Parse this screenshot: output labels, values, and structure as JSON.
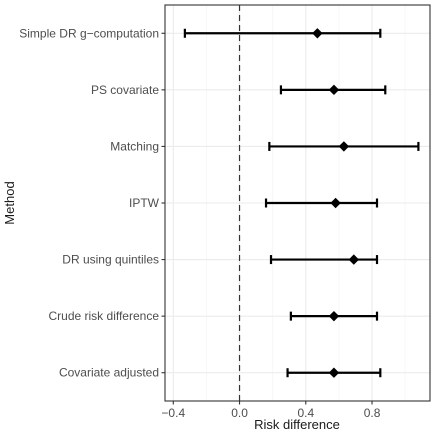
{
  "chart_data": {
    "type": "forest",
    "title": "",
    "xlabel": "Risk difference",
    "ylabel": "Method",
    "xlim": [
      -0.45,
      1.15
    ],
    "x_ticks": [
      -0.4,
      0.0,
      0.4,
      0.8
    ],
    "x_tick_labels": [
      "−0.4",
      "0.0",
      "0.4",
      "0.8"
    ],
    "reference_line": 0.0,
    "grid": true,
    "theme": "bw",
    "categories": [
      "Simple DR g−computation",
      "PS covariate",
      "Matching",
      "IPTW",
      "DR using quintiles",
      "Crude risk difference",
      "Covariate adjusted"
    ],
    "estimates": [
      0.47,
      0.57,
      0.63,
      0.58,
      0.69,
      0.57,
      0.57
    ],
    "lower": [
      -0.33,
      0.25,
      0.18,
      0.16,
      0.19,
      0.31,
      0.29
    ],
    "upper": [
      0.85,
      0.88,
      1.08,
      0.83,
      0.83,
      0.83,
      0.85
    ],
    "colors": {
      "point": "#000000",
      "interval": "#000000",
      "reference": "#333333",
      "grid_major": "#ebebeb",
      "grid_minor": "#f5f5f5",
      "panel_border": "#333333"
    }
  }
}
